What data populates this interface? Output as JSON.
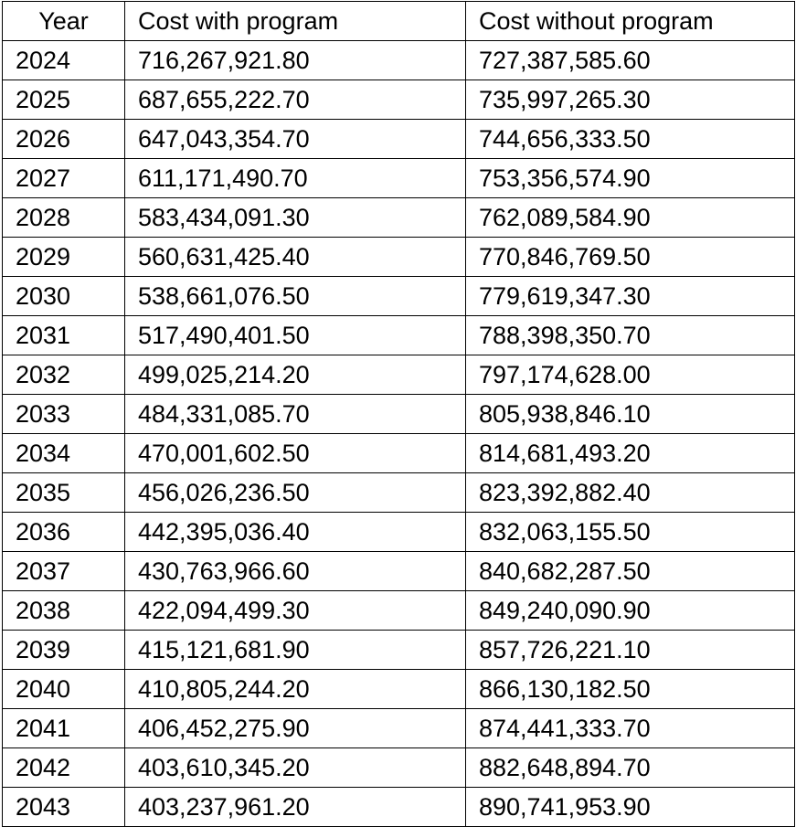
{
  "table": {
    "headers": [
      "Year",
      "Cost with program",
      "Cost without program"
    ],
    "rows": [
      [
        "2024",
        "716,267,921.80",
        "727,387,585.60"
      ],
      [
        "2025",
        "687,655,222.70",
        "735,997,265.30"
      ],
      [
        "2026",
        "647,043,354.70",
        "744,656,333.50"
      ],
      [
        "2027",
        "611,171,490.70",
        "753,356,574.90"
      ],
      [
        "2028",
        "583,434,091.30",
        "762,089,584.90"
      ],
      [
        "2029",
        "560,631,425.40",
        "770,846,769.50"
      ],
      [
        "2030",
        "538,661,076.50",
        "779,619,347.30"
      ],
      [
        "2031",
        "517,490,401.50",
        "788,398,350.70"
      ],
      [
        "2032",
        "499,025,214.20",
        "797,174,628.00"
      ],
      [
        "2033",
        "484,331,085.70",
        "805,938,846.10"
      ],
      [
        "2034",
        "470,001,602.50",
        "814,681,493.20"
      ],
      [
        "2035",
        "456,026,236.50",
        "823,392,882.40"
      ],
      [
        "2036",
        "442,395,036.40",
        "832,063,155.50"
      ],
      [
        "2037",
        "430,763,966.60",
        "840,682,287.50"
      ],
      [
        "2038",
        "422,094,499.30",
        "849,240,090.90"
      ],
      [
        "2039",
        "415,121,681.90",
        "857,726,221.10"
      ],
      [
        "2040",
        "410,805,244.20",
        "866,130,182.50"
      ],
      [
        "2041",
        "406,452,275.90",
        "874,441,333.70"
      ],
      [
        "2042",
        "403,610,345.20",
        "882,648,894.70"
      ],
      [
        "2043",
        "403,237,961.20",
        "890,741,953.90"
      ]
    ]
  }
}
